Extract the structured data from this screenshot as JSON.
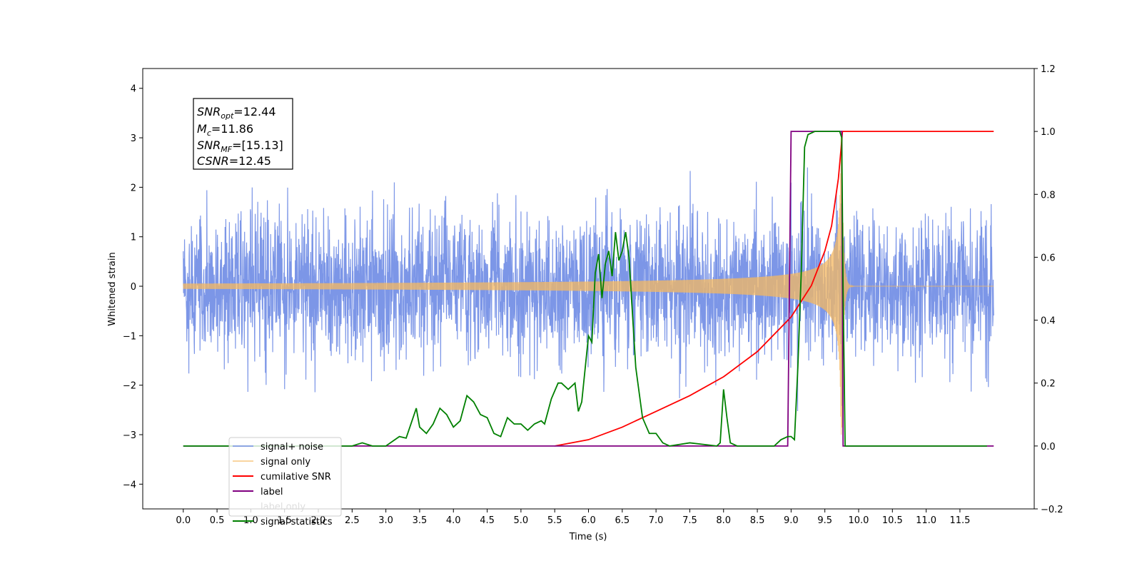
{
  "chart_data": {
    "type": "line",
    "xlabel": "Time (s)",
    "ylabel": "Whitened strain",
    "xlim": [
      -0.6,
      12.6
    ],
    "ylim": [
      -4.5,
      4.4
    ],
    "y2lim": [
      -0.2,
      1.2
    ],
    "xticks": [
      "0.0",
      "0.5",
      "1.0",
      "1.5",
      "2.0",
      "2.5",
      "3.0",
      "3.5",
      "4.0",
      "4.5",
      "5.0",
      "5.5",
      "6.0",
      "6.5",
      "7.0",
      "7.5",
      "8.0",
      "8.5",
      "9.0",
      "9.5",
      "10.0",
      "10.5",
      "11.0",
      "11.5"
    ],
    "yticks": [
      "4",
      "3",
      "2",
      "1",
      "0",
      "−1",
      "−2",
      "−3",
      "−4"
    ],
    "y2ticks": [
      "1.2",
      "1.0",
      "0.8",
      "0.6",
      "0.4",
      "0.2",
      "0.0",
      "−0.2"
    ],
    "info_box": {
      "snr_opt": {
        "main": "SNR",
        "sub": "opt",
        "value": "=12.44"
      },
      "mc": {
        "main": "M",
        "sub": "c",
        "value": "=11.86"
      },
      "snr_mf": {
        "main": "SNR",
        "sub": "MF",
        "value": "=[15.13]"
      },
      "csnr": {
        "main": "CSNR",
        "value": "=12.45"
      }
    },
    "legend_position": "lower-left",
    "series": [
      {
        "name": "signal+ noise",
        "color": "#7590e6",
        "axis": "left",
        "noise_std": 0.72,
        "t_range": [
          0.0,
          12.0
        ]
      },
      {
        "name": "signal only",
        "color": "#f5b860",
        "axis": "left",
        "merger_time": 9.75,
        "peak_amplitude": 3.0
      },
      {
        "name": "cumilative SNR",
        "color": "#ff0000",
        "axis": "right",
        "x": [
          5.5,
          6.0,
          6.5,
          7.0,
          7.5,
          8.0,
          8.5,
          9.0,
          9.3,
          9.5,
          9.6,
          9.7,
          9.75,
          9.76,
          12.0
        ],
        "y": [
          0.0,
          0.02,
          0.06,
          0.11,
          0.16,
          0.22,
          0.3,
          0.41,
          0.51,
          0.62,
          0.7,
          0.85,
          0.97,
          1.0,
          1.0
        ]
      },
      {
        "name": "label",
        "color": "#800080",
        "axis": "right",
        "x": [
          0.0,
          8.95,
          9.0,
          9.75,
          9.77,
          12.0
        ],
        "y": [
          0.0,
          0.0,
          1.0,
          1.0,
          0.0,
          0.0
        ]
      },
      {
        "name": "label only",
        "color": "#ffffff",
        "axis": "right",
        "x": [],
        "y": []
      },
      {
        "name": "signal statistics",
        "color": "#008000",
        "axis": "right",
        "x": [
          0.0,
          2.5,
          2.65,
          2.8,
          3.0,
          3.2,
          3.3,
          3.45,
          3.5,
          3.6,
          3.7,
          3.8,
          3.9,
          4.0,
          4.1,
          4.2,
          4.3,
          4.4,
          4.5,
          4.6,
          4.7,
          4.8,
          4.9,
          5.0,
          5.1,
          5.2,
          5.3,
          5.35,
          5.45,
          5.55,
          5.6,
          5.7,
          5.8,
          5.85,
          5.9,
          6.0,
          6.05,
          6.1,
          6.15,
          6.2,
          6.25,
          6.3,
          6.35,
          6.4,
          6.45,
          6.5,
          6.55,
          6.6,
          6.7,
          6.8,
          6.9,
          7.0,
          7.1,
          7.2,
          7.5,
          7.9,
          7.95,
          8.0,
          8.05,
          8.1,
          8.2,
          8.5,
          8.75,
          8.85,
          8.95,
          9.0,
          9.05,
          9.1,
          9.15,
          9.2,
          9.25,
          9.35,
          9.72,
          9.75,
          9.77,
          9.8,
          11.9
        ],
        "y": [
          0.0,
          0.0,
          0.01,
          0.0,
          0.0,
          0.03,
          0.025,
          0.12,
          0.06,
          0.04,
          0.07,
          0.12,
          0.1,
          0.06,
          0.08,
          0.16,
          0.14,
          0.1,
          0.09,
          0.04,
          0.03,
          0.09,
          0.07,
          0.07,
          0.05,
          0.07,
          0.08,
          0.07,
          0.15,
          0.2,
          0.2,
          0.18,
          0.2,
          0.11,
          0.14,
          0.35,
          0.33,
          0.55,
          0.61,
          0.47,
          0.58,
          0.62,
          0.54,
          0.68,
          0.59,
          0.62,
          0.68,
          0.6,
          0.25,
          0.09,
          0.04,
          0.04,
          0.01,
          0.0,
          0.01,
          0.0,
          0.01,
          0.18,
          0.09,
          0.01,
          0.0,
          0.0,
          0.0,
          0.02,
          0.03,
          0.03,
          0.02,
          0.25,
          0.55,
          0.95,
          0.99,
          1.0,
          1.0,
          0.98,
          0.5,
          0.0,
          0.0
        ]
      }
    ]
  }
}
